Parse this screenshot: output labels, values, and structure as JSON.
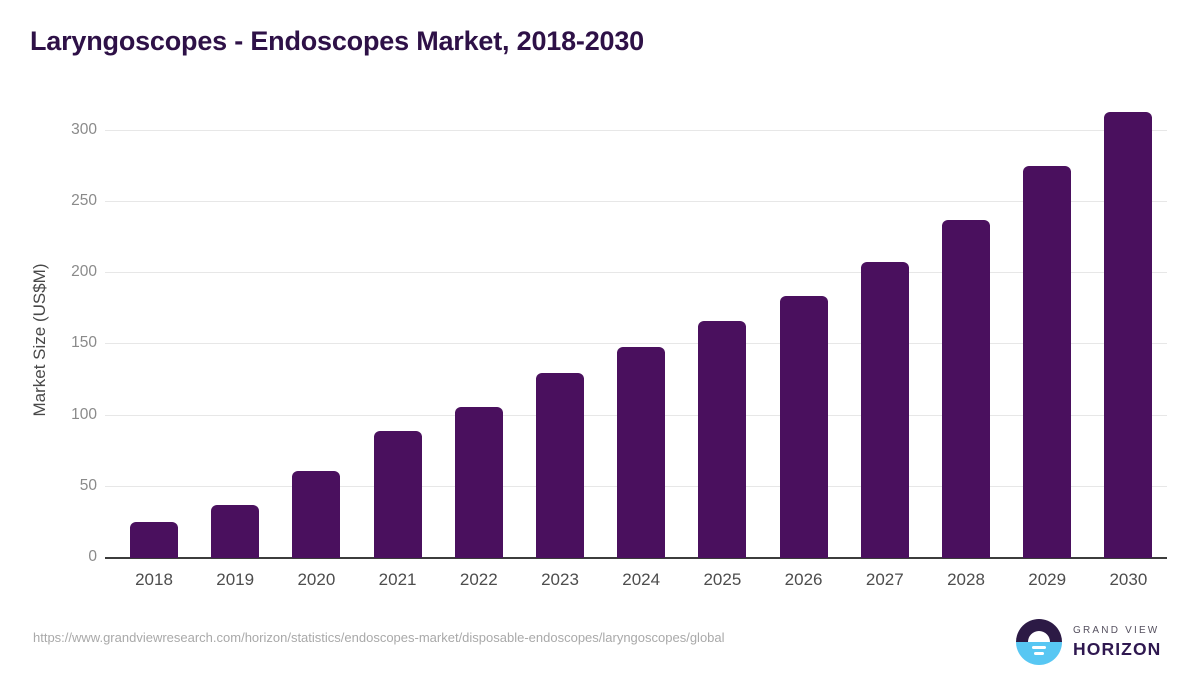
{
  "header": {
    "title": "Laryngoscopes - Endoscopes Market, 2018-2030"
  },
  "chart_data": {
    "type": "bar",
    "title": "Laryngoscopes - Endoscopes Market, 2018-2030",
    "categories": [
      "2018",
      "2019",
      "2020",
      "2021",
      "2022",
      "2023",
      "2024",
      "2025",
      "2026",
      "2027",
      "2028",
      "2029",
      "2030"
    ],
    "values": [
      25,
      37,
      61,
      89,
      106,
      130,
      148,
      166,
      184,
      208,
      237,
      275,
      313
    ],
    "xlabel": "",
    "ylabel": "Market Size (US$M)",
    "ylim": [
      0,
      320
    ],
    "yticks": [
      0,
      50,
      100,
      150,
      200,
      250,
      300
    ],
    "grid": true,
    "legend": "none",
    "bar_color": "#4a105e"
  },
  "colors": {
    "title": "#2e1147",
    "bar": "#4a105e",
    "gridline": "#e7e7e7",
    "axis_line": "#3c3c3c",
    "logo_purple": "#2c1a45",
    "logo_blue": "#58c7f3"
  },
  "footer": {
    "source_url": "https://www.grandviewresearch.com/horizon/statistics/endoscopes-market/disposable-endoscopes/laryngoscopes/global",
    "logo": {
      "line1": "GRAND VIEW",
      "line2": "HORIZON"
    }
  }
}
